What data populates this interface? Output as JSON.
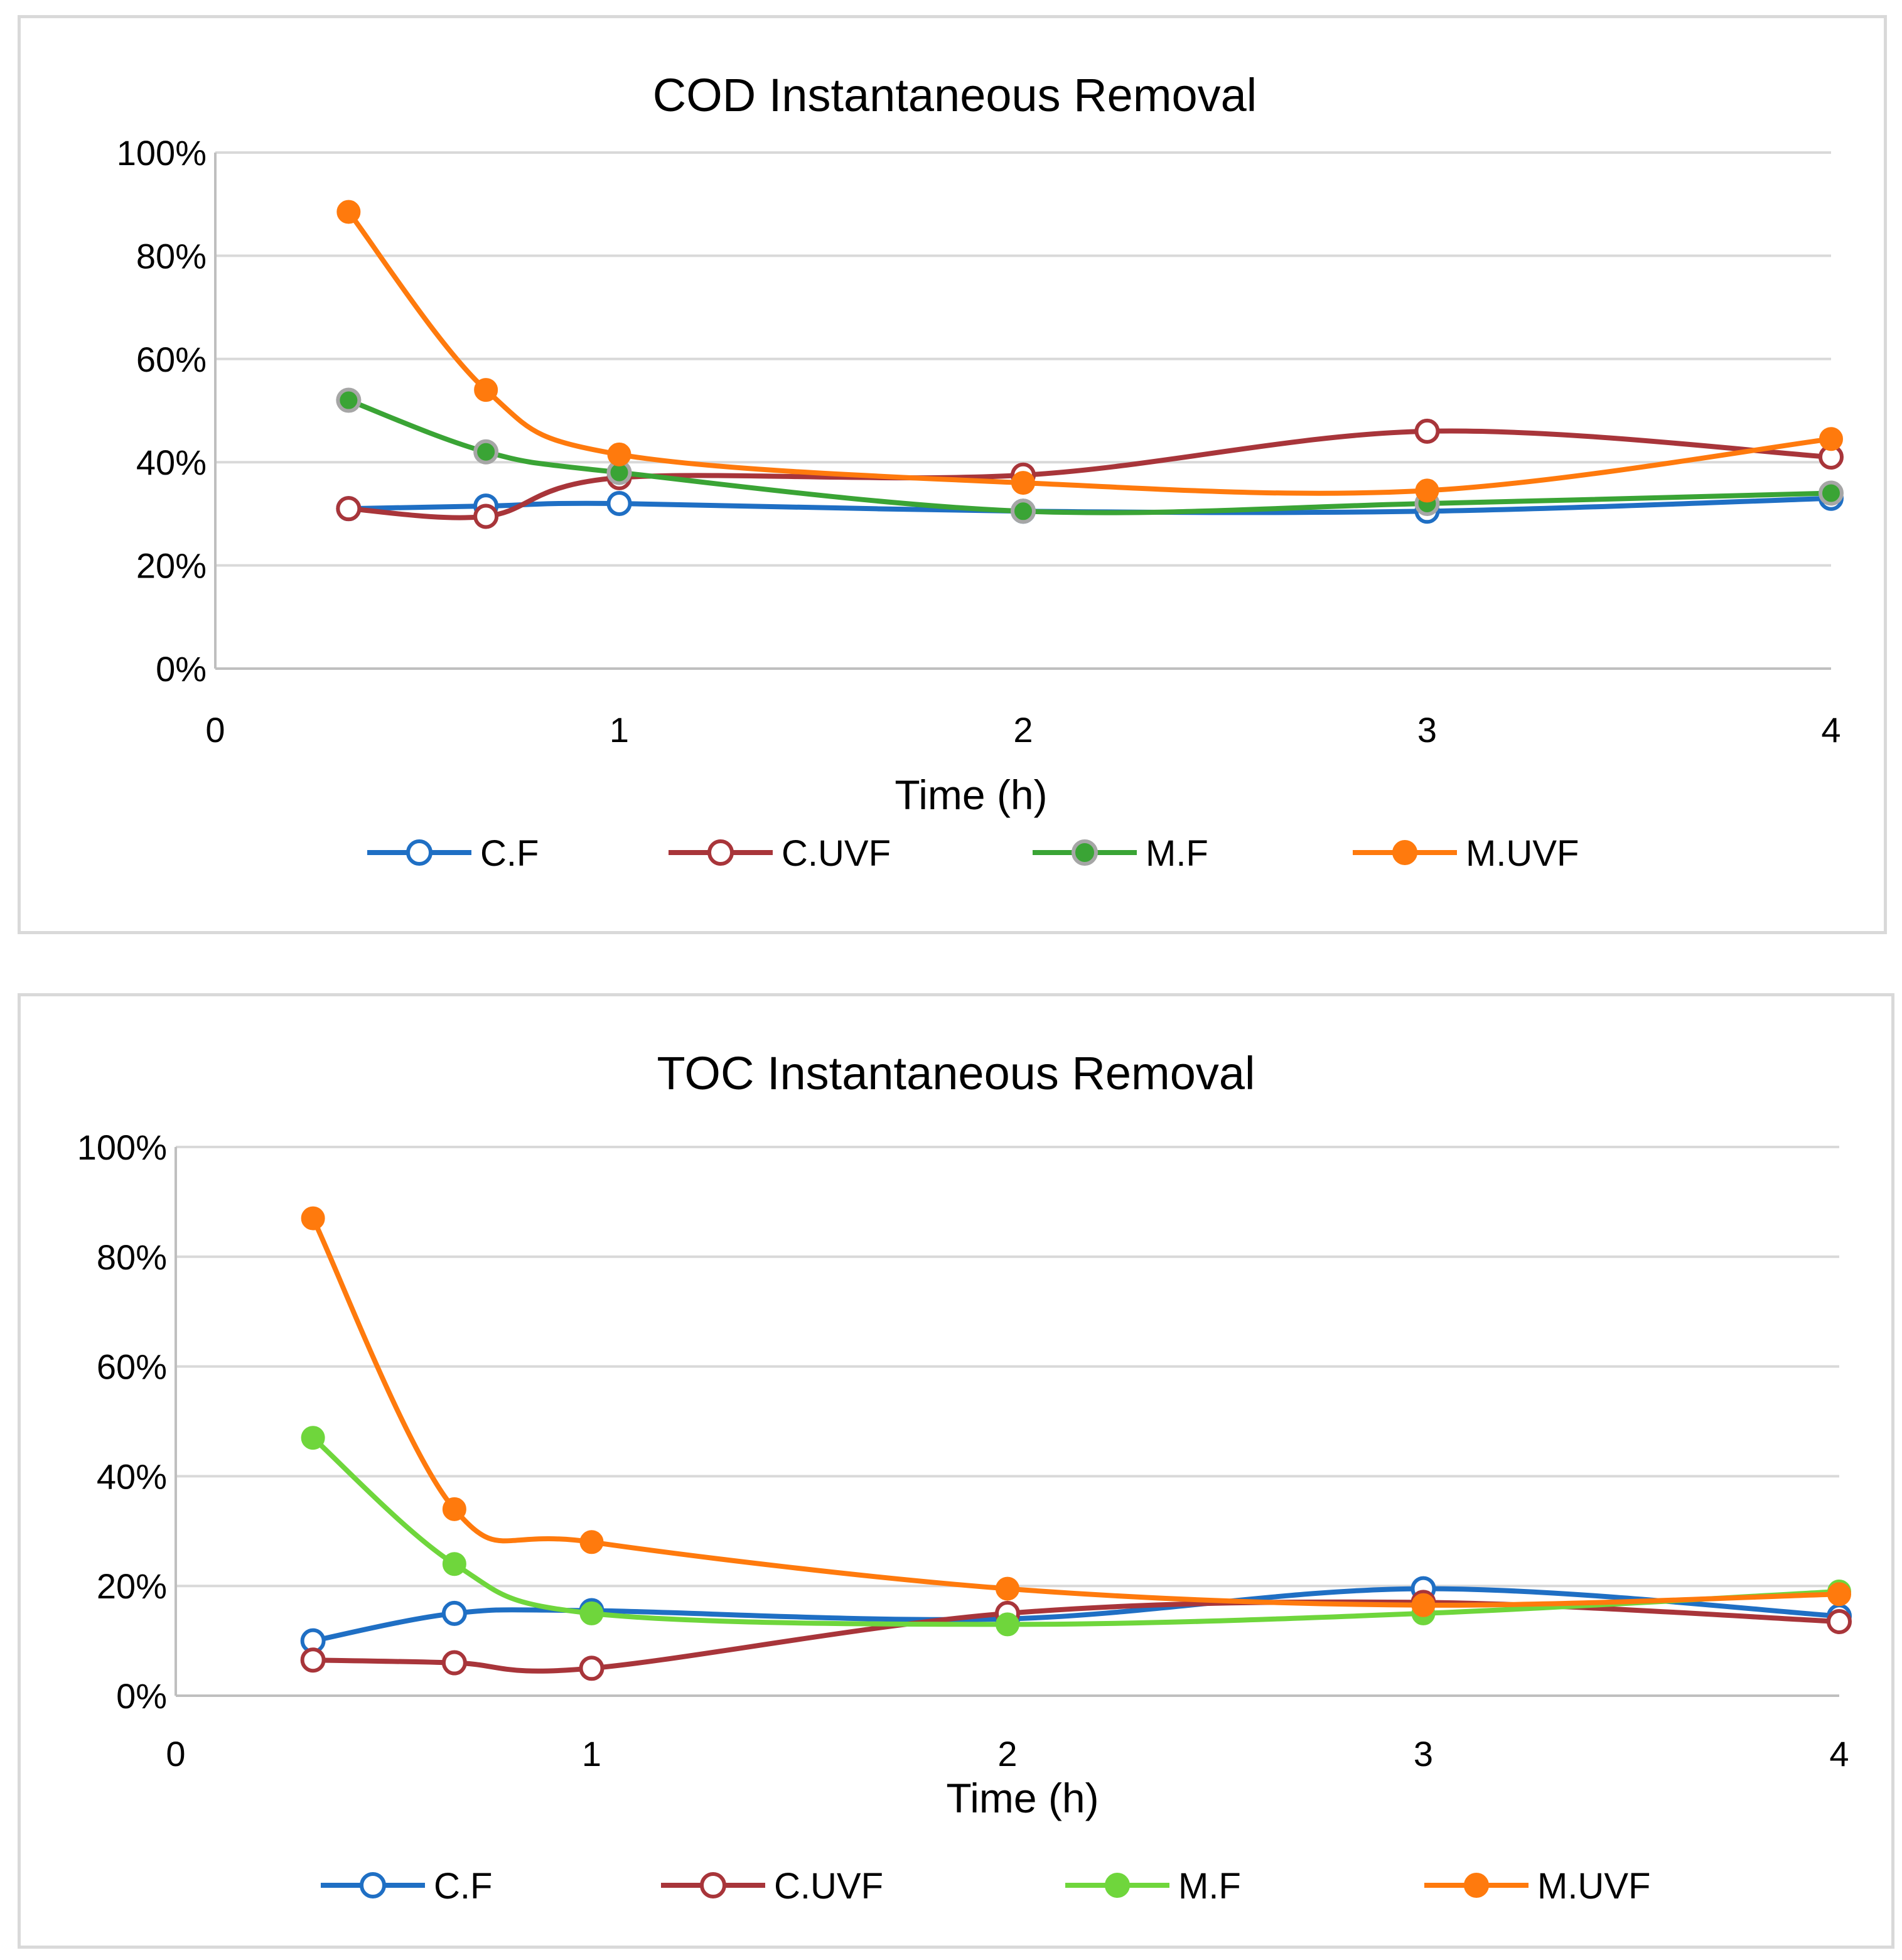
{
  "chart_data": [
    {
      "type": "line",
      "title": "COD Instantaneous Removal",
      "xlabel": "Time (h)",
      "ylabel": "",
      "xlim": [
        0,
        4
      ],
      "ylim": [
        0,
        100
      ],
      "x_ticks": [
        "0",
        "1",
        "2",
        "3",
        "4"
      ],
      "y_ticks": [
        "0%",
        "20%",
        "40%",
        "60%",
        "80%",
        "100%"
      ],
      "grid": "horizontal",
      "legend_position": "bottom",
      "series": [
        {
          "name": "C.F",
          "color": "#1f6fc4",
          "marker": "open-circle",
          "x": [
            0.33,
            0.67,
            1,
            2,
            3,
            4
          ],
          "values": [
            31,
            31.5,
            32,
            30.5,
            30.5,
            33
          ]
        },
        {
          "name": "C.UVF",
          "color": "#a8353a",
          "marker": "open-circle",
          "x": [
            0.33,
            0.67,
            1,
            2,
            3,
            4
          ],
          "values": [
            31,
            29.5,
            37,
            37.5,
            46,
            41
          ]
        },
        {
          "name": "M.F",
          "color": "#3aa435",
          "marker": "filled-circle-grey-edge",
          "x": [
            0.33,
            0.67,
            1,
            2,
            3,
            4
          ],
          "values": [
            52,
            42,
            38,
            30.5,
            32,
            34
          ]
        },
        {
          "name": "M.UVF",
          "color": "#ff7a0d",
          "marker": "filled-circle",
          "x": [
            0.33,
            0.67,
            1,
            2,
            3,
            4
          ],
          "values": [
            88.5,
            54,
            41.5,
            36,
            34.5,
            44.5
          ]
        }
      ]
    },
    {
      "type": "line",
      "title": "TOC Instantaneous Removal",
      "xlabel": "Time (h)",
      "ylabel": "",
      "xlim": [
        0,
        4
      ],
      "ylim": [
        0,
        100
      ],
      "x_ticks": [
        "0",
        "1",
        "2",
        "3",
        "4"
      ],
      "y_ticks": [
        "0%",
        "20%",
        "40%",
        "60%",
        "80%",
        "100%"
      ],
      "grid": "horizontal",
      "legend_position": "bottom",
      "series": [
        {
          "name": "C.F",
          "color": "#1f6fc4",
          "marker": "open-circle",
          "x": [
            0.33,
            0.67,
            1,
            2,
            3,
            4
          ],
          "values": [
            10,
            15,
            15.5,
            14,
            19.5,
            14.5
          ]
        },
        {
          "name": "C.UVF",
          "color": "#a8353a",
          "marker": "open-circle",
          "x": [
            0.33,
            0.67,
            1,
            2,
            3,
            4
          ],
          "values": [
            6.5,
            6,
            5,
            15,
            17,
            13.5
          ]
        },
        {
          "name": "M.F",
          "color": "#6fd63c",
          "marker": "filled-circle",
          "x": [
            0.33,
            0.67,
            1,
            2,
            3,
            4
          ],
          "values": [
            47,
            24,
            15,
            13,
            15,
            19
          ]
        },
        {
          "name": "M.UVF",
          "color": "#ff7a0d",
          "marker": "filled-circle",
          "x": [
            0.33,
            0.67,
            1,
            2,
            3,
            4
          ],
          "values": [
            87,
            34,
            28,
            19.5,
            16.5,
            18.5
          ]
        }
      ]
    }
  ]
}
